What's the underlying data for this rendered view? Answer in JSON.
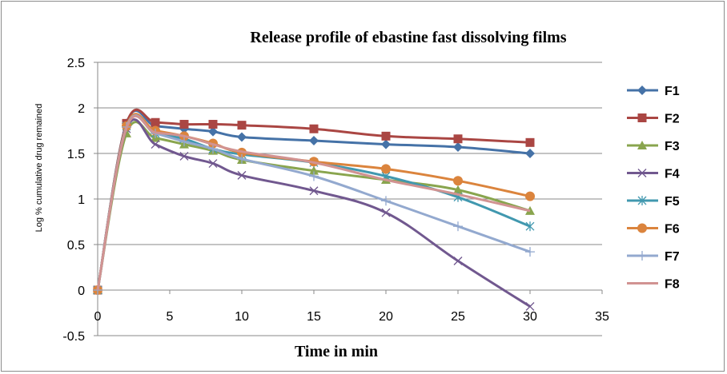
{
  "chart_data": {
    "type": "line",
    "title": "Release profile of ebastine fast dissolving films",
    "xlabel": "Time in min",
    "ylabel": "Log % cumulative drug remained",
    "xlim": [
      0,
      35
    ],
    "ylim": [
      -0.5,
      2.5
    ],
    "xticks": [
      "0",
      "5",
      "10",
      "15",
      "20",
      "25",
      "30",
      "35"
    ],
    "yticks": [
      "-0.5",
      "0",
      "0.5",
      "1",
      "1.5",
      "2",
      "2.5"
    ],
    "grid": "horizontal major gridlines",
    "legend_position": "right",
    "x": [
      0,
      2,
      4,
      6,
      8,
      10,
      15,
      20,
      25,
      30
    ],
    "series": [
      {
        "name": "F1",
        "color": "#4572A7",
        "marker": "diamond",
        "values": [
          0,
          1.83,
          1.8,
          1.77,
          1.74,
          1.68,
          1.64,
          1.6,
          1.57,
          1.5
        ]
      },
      {
        "name": "F2",
        "color": "#AA4643",
        "marker": "square",
        "values": [
          0,
          1.83,
          1.84,
          1.82,
          1.82,
          1.81,
          1.77,
          1.69,
          1.66,
          1.62
        ]
      },
      {
        "name": "F3",
        "color": "#89A54E",
        "marker": "triangle",
        "values": [
          0,
          1.72,
          1.67,
          1.6,
          1.53,
          1.43,
          1.31,
          1.21,
          1.1,
          0.87
        ]
      },
      {
        "name": "F4",
        "color": "#71588F",
        "marker": "x",
        "values": [
          0,
          1.77,
          1.6,
          1.47,
          1.39,
          1.26,
          1.09,
          0.85,
          0.32,
          -0.18
        ]
      },
      {
        "name": "F5",
        "color": "#4198AF",
        "marker": "star",
        "values": [
          0,
          1.8,
          1.72,
          1.66,
          1.55,
          1.49,
          1.4,
          1.25,
          1.02,
          0.7
        ]
      },
      {
        "name": "F6",
        "color": "#DB843D",
        "marker": "circle",
        "values": [
          0,
          1.8,
          1.75,
          1.69,
          1.61,
          1.51,
          1.41,
          1.33,
          1.2,
          1.03
        ]
      },
      {
        "name": "F7",
        "color": "#93A9CF",
        "marker": "plus",
        "values": [
          0,
          1.79,
          1.72,
          1.63,
          1.55,
          1.44,
          1.25,
          0.98,
          0.7,
          0.42
        ]
      },
      {
        "name": "F8",
        "color": "#D19392",
        "marker": "none",
        "values": [
          0,
          1.78,
          1.73,
          1.69,
          1.6,
          1.52,
          1.4,
          1.21,
          1.05,
          0.87
        ]
      }
    ]
  }
}
